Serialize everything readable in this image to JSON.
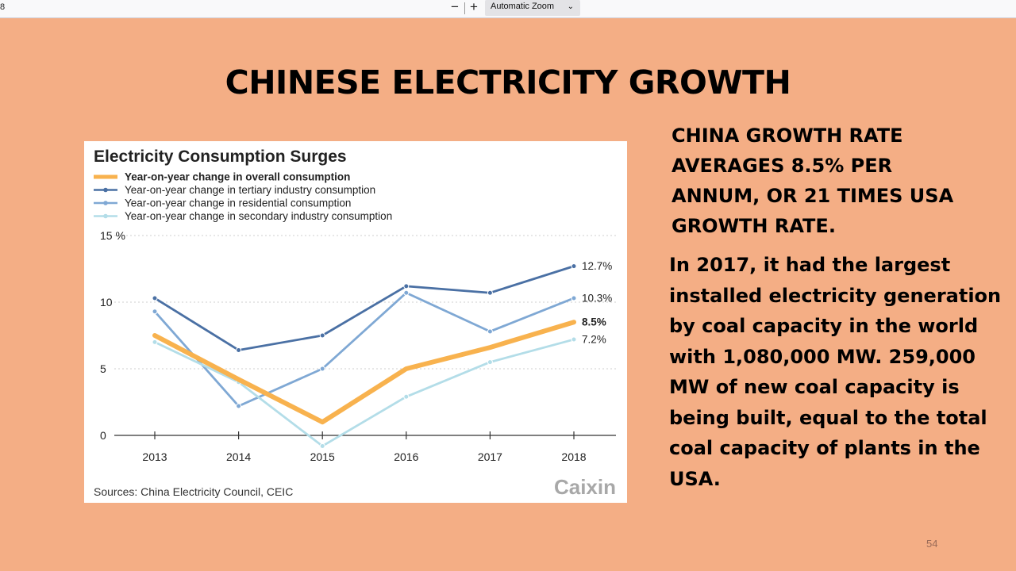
{
  "toolbar": {
    "page_number": "8",
    "zoom_out_label": "−",
    "zoom_in_label": "+",
    "zoom_value": "Automatic Zoom"
  },
  "slide": {
    "title": "CHINESE ELECTRICITY GROWTH",
    "side_heading": "CHINA GROWTH RATE AVERAGES 8.5% PER ANNUM, OR 21 TIMES USA GROWTH RATE.",
    "side_body": "In 2017, it had the largest installed electricity generation by coal capacity in the world with 1,080,000 MW. 259,000 MW of new coal capacity is being built, equal to the total coal capacity of plants in the USA.",
    "page_number": "54"
  },
  "chart_data": {
    "type": "line",
    "title": "Electricity Consumption Surges",
    "source": "Sources: China Electricity Council, CEIC",
    "logo": "Caixin",
    "y_unit": "%",
    "ylim": [
      0,
      15
    ],
    "yticks": [
      0,
      5,
      10,
      15
    ],
    "x": [
      "2013",
      "2014",
      "2015",
      "2016",
      "2017",
      "2018"
    ],
    "grid": true,
    "legend_position": "top-left",
    "series": [
      {
        "name": "Year-on-year change in overall consumption",
        "color": "#f8b24e",
        "values": [
          7.5,
          4.2,
          1.0,
          5.0,
          6.6,
          8.5
        ],
        "end_label": "8.5%",
        "bold": true
      },
      {
        "name": "Year-on-year change in tertiary industry consumption",
        "color": "#4a70a4",
        "values": [
          10.3,
          6.4,
          7.5,
          11.2,
          10.7,
          12.7
        ],
        "end_label": "12.7%",
        "bold": false
      },
      {
        "name": "Year-on-year change in residential consumption",
        "color": "#7fa8d4",
        "values": [
          9.3,
          2.2,
          5.0,
          10.7,
          7.8,
          10.3
        ],
        "end_label": "10.3%",
        "bold": false
      },
      {
        "name": "Year-on-year change in secondary industry consumption",
        "color": "#b3dde8",
        "values": [
          7.0,
          4.0,
          -0.8,
          2.9,
          5.5,
          7.2
        ],
        "end_label": "7.2%",
        "bold": false
      }
    ]
  }
}
